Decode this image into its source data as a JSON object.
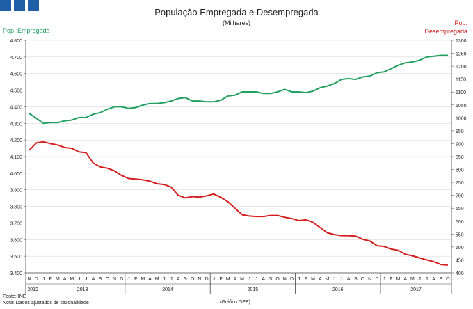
{
  "chart_data": {
    "type": "line",
    "title": "População Empregada e Desempregada",
    "subtitle": "(Milhares)",
    "ylabel_left": "Pop. Empregada",
    "ylabel_right_line1": "Pop.",
    "ylabel_right_line2": "Desempregada",
    "ylim_left": [
      3400,
      4800
    ],
    "ylim_right": [
      400,
      1300
    ],
    "left_ticks": [
      "4.800",
      "4.700",
      "4.600",
      "4.500",
      "4.400",
      "4.300",
      "4.200",
      "4.100",
      "4.000",
      "3.900",
      "3.800",
      "3.700",
      "3.600",
      "3.500",
      "3.400"
    ],
    "right_ticks": [
      "1300",
      "1250",
      "1200",
      "1150",
      "1100",
      "1050",
      "1000",
      "950",
      "900",
      "850",
      "800",
      "750",
      "700",
      "650",
      "600",
      "550",
      "500",
      "450",
      "400"
    ],
    "month_labels": [
      "N",
      "D",
      "J",
      "F",
      "M",
      "A",
      "M",
      "J",
      "J",
      "A",
      "S",
      "O",
      "N",
      "D",
      "J",
      "F",
      "M",
      "A",
      "M",
      "J",
      "J",
      "A",
      "S",
      "O",
      "N",
      "D",
      "J",
      "F",
      "M",
      "A",
      "M",
      "J",
      "J",
      "A",
      "S",
      "O",
      "N",
      "D",
      "J",
      "F",
      "M",
      "A",
      "M",
      "J",
      "J",
      "A",
      "S",
      "O",
      "N",
      "D",
      "J",
      "F",
      "M",
      "A",
      "M",
      "J",
      "J",
      "A",
      "S",
      "O"
    ],
    "year_labels": [
      "2012",
      "2013",
      "2014",
      "2015",
      "2016",
      "2017"
    ],
    "series": [
      {
        "name": "Pop. Empregada",
        "axis": "left",
        "color": "#21a15f",
        "values": [
          4360,
          4330,
          4300,
          4305,
          4305,
          4315,
          4320,
          4335,
          4335,
          4355,
          4365,
          4385,
          4400,
          4400,
          4390,
          4395,
          4410,
          4420,
          4420,
          4425,
          4435,
          4450,
          4455,
          4435,
          4435,
          4430,
          4430,
          4440,
          4465,
          4470,
          4490,
          4490,
          4490,
          4480,
          4480,
          4490,
          4505,
          4490,
          4490,
          4485,
          4495,
          4515,
          4525,
          4540,
          4565,
          4570,
          4565,
          4580,
          4585,
          4605,
          4610,
          4630,
          4650,
          4665,
          4670,
          4680,
          4700,
          4705,
          4710,
          4710
        ]
      },
      {
        "name": "Pop. Desempregada",
        "axis": "right",
        "color": "#d41f1f",
        "values": [
          875,
          903,
          907,
          900,
          895,
          885,
          882,
          868,
          865,
          825,
          810,
          805,
          795,
          777,
          765,
          763,
          760,
          755,
          745,
          742,
          732,
          700,
          690,
          695,
          693,
          698,
          705,
          692,
          675,
          650,
          625,
          620,
          618,
          618,
          622,
          622,
          615,
          610,
          602,
          605,
          595,
          575,
          555,
          548,
          544,
          544,
          542,
          530,
          523,
          505,
          502,
          492,
          487,
          472,
          466,
          458,
          450,
          443,
          432,
          430
        ]
      }
    ],
    "grid": true
  },
  "footer": {
    "source": "Fonte: INE",
    "note": "Nota: Dados ajustados de sazonalidade",
    "credit": "(Gráfico:GEE)"
  }
}
